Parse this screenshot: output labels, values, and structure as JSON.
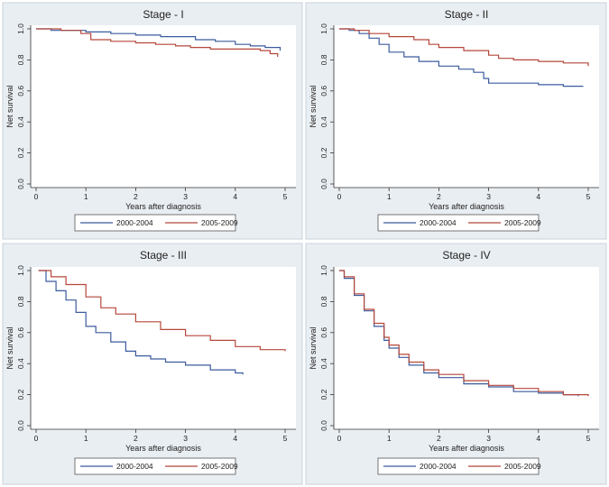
{
  "figure": {
    "colors": {
      "2000-2004": "#3b5b9e",
      "2005-2009": "#b5473a",
      "panel_bg": "#e9eef2",
      "axes_bg": "#ffffff"
    }
  },
  "chart_data": [
    {
      "type": "line",
      "title": "Stage - I",
      "xlabel": "Years after diagnosis",
      "ylabel": "Net survival",
      "xlim": [
        0,
        5
      ],
      "ylim": [
        0,
        1
      ],
      "xticks": [
        "0",
        "1",
        "2",
        "3",
        "4",
        "5"
      ],
      "yticks": [
        "0.0",
        "0.2",
        "0.4",
        "0.6",
        "0.8",
        "1.0"
      ],
      "grid": false,
      "legend": "bottom",
      "series": [
        {
          "name": "2000-2004",
          "color": "#3b5b9e",
          "x": [
            0,
            0.3,
            0.6,
            1.0,
            1.5,
            2.0,
            2.5,
            2.9,
            3.2,
            3.6,
            4.0,
            4.3,
            4.6,
            4.9
          ],
          "y": [
            1.0,
            0.99,
            0.99,
            0.98,
            0.97,
            0.96,
            0.95,
            0.95,
            0.93,
            0.92,
            0.9,
            0.89,
            0.88,
            0.86
          ]
        },
        {
          "name": "2005-2009",
          "color": "#b5473a",
          "x": [
            0,
            0.5,
            0.9,
            1.1,
            1.5,
            2.0,
            2.4,
            2.8,
            3.1,
            3.5,
            4.0,
            4.5,
            4.7,
            4.85
          ],
          "y": [
            1.0,
            0.99,
            0.97,
            0.93,
            0.92,
            0.91,
            0.9,
            0.89,
            0.88,
            0.87,
            0.87,
            0.86,
            0.84,
            0.82
          ]
        }
      ]
    },
    {
      "type": "line",
      "title": "Stage - II",
      "xlabel": "Years after diagnosis",
      "ylabel": "Net survival",
      "xlim": [
        0,
        5
      ],
      "ylim": [
        0,
        1
      ],
      "xticks": [
        "0",
        "1",
        "2",
        "3",
        "4",
        "5"
      ],
      "yticks": [
        "0.0",
        "0.2",
        "0.4",
        "0.6",
        "0.8",
        "1.0"
      ],
      "grid": false,
      "legend": "bottom",
      "series": [
        {
          "name": "2000-2004",
          "color": "#3b5b9e",
          "x": [
            0,
            0.2,
            0.4,
            0.6,
            0.8,
            1.0,
            1.3,
            1.6,
            2.0,
            2.4,
            2.7,
            2.9,
            3.0,
            3.5,
            4.0,
            4.5,
            4.9
          ],
          "y": [
            1.0,
            0.99,
            0.97,
            0.94,
            0.9,
            0.85,
            0.82,
            0.79,
            0.76,
            0.74,
            0.72,
            0.68,
            0.65,
            0.65,
            0.64,
            0.63,
            0.63
          ]
        },
        {
          "name": "2005-2009",
          "color": "#b5473a",
          "x": [
            0,
            0.3,
            0.6,
            1.0,
            1.5,
            1.8,
            2.0,
            2.5,
            3.0,
            3.2,
            3.5,
            4.0,
            4.5,
            4.9,
            5.0
          ],
          "y": [
            1.0,
            0.99,
            0.97,
            0.95,
            0.93,
            0.9,
            0.88,
            0.86,
            0.83,
            0.81,
            0.8,
            0.79,
            0.78,
            0.78,
            0.76
          ]
        }
      ]
    },
    {
      "type": "line",
      "title": "Stage - III",
      "xlabel": "Years after diagnosis",
      "ylabel": "Net survival",
      "xlim": [
        0,
        5
      ],
      "ylim": [
        0,
        1
      ],
      "xticks": [
        "0",
        "1",
        "2",
        "3",
        "4",
        "5"
      ],
      "yticks": [
        "0.0",
        "0.2",
        "0.4",
        "0.6",
        "0.8",
        "1.0"
      ],
      "grid": false,
      "legend": "bottom",
      "series": [
        {
          "name": "2000-2004",
          "color": "#3b5b9e",
          "x": [
            0.05,
            0.2,
            0.4,
            0.6,
            0.8,
            1.0,
            1.2,
            1.5,
            1.8,
            2.0,
            2.3,
            2.6,
            3.0,
            3.5,
            4.0,
            4.15
          ],
          "y": [
            1.0,
            0.93,
            0.87,
            0.81,
            0.73,
            0.64,
            0.6,
            0.54,
            0.48,
            0.45,
            0.43,
            0.41,
            0.39,
            0.36,
            0.34,
            0.33
          ]
        },
        {
          "name": "2005-2009",
          "color": "#b5473a",
          "x": [
            0.05,
            0.3,
            0.6,
            1.0,
            1.3,
            1.6,
            2.0,
            2.5,
            3.0,
            3.5,
            4.0,
            4.5,
            5.0
          ],
          "y": [
            1.0,
            0.96,
            0.91,
            0.83,
            0.76,
            0.72,
            0.67,
            0.62,
            0.58,
            0.55,
            0.51,
            0.49,
            0.48
          ]
        }
      ]
    },
    {
      "type": "line",
      "title": "Stage - IV",
      "xlabel": "Years after diagnosis",
      "ylabel": "Net survival",
      "xlim": [
        0,
        5
      ],
      "ylim": [
        0,
        1
      ],
      "xticks": [
        "0",
        "1",
        "2",
        "3",
        "4",
        "5"
      ],
      "yticks": [
        "0.0",
        "0.2",
        "0.4",
        "0.6",
        "0.8",
        "1.0"
      ],
      "grid": false,
      "legend": "bottom",
      "series": [
        {
          "name": "2000-2004",
          "color": "#3b5b9e",
          "x": [
            0,
            0.1,
            0.3,
            0.5,
            0.7,
            0.9,
            1.0,
            1.2,
            1.4,
            1.7,
            2.0,
            2.5,
            3.0,
            3.5,
            4.0,
            4.5,
            4.8
          ],
          "y": [
            1.0,
            0.95,
            0.84,
            0.74,
            0.64,
            0.55,
            0.5,
            0.44,
            0.39,
            0.34,
            0.31,
            0.27,
            0.25,
            0.22,
            0.21,
            0.2,
            0.19
          ]
        },
        {
          "name": "2005-2009",
          "color": "#b5473a",
          "x": [
            0,
            0.1,
            0.3,
            0.5,
            0.7,
            0.9,
            1.0,
            1.2,
            1.4,
            1.7,
            2.0,
            2.5,
            3.0,
            3.5,
            4.0,
            4.5,
            5.0
          ],
          "y": [
            1.0,
            0.96,
            0.85,
            0.75,
            0.66,
            0.57,
            0.52,
            0.46,
            0.41,
            0.36,
            0.33,
            0.29,
            0.26,
            0.24,
            0.22,
            0.2,
            0.19
          ]
        }
      ]
    }
  ]
}
